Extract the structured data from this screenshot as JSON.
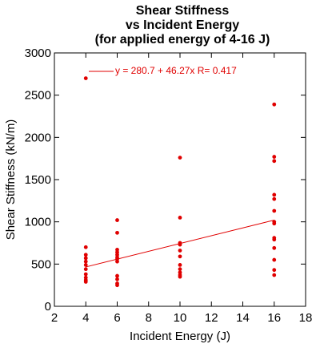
{
  "chart_data": {
    "type": "scatter",
    "title": [
      "Shear Stiffness",
      "vs Incident Energy",
      "(for applied energy of 4-16 J)"
    ],
    "xlabel": "Incident Energy (J)",
    "ylabel": "Shear Stiffness (kN/m)",
    "xlim": [
      2,
      18
    ],
    "ylim": [
      0,
      3000
    ],
    "xticks": [
      2,
      4,
      6,
      8,
      10,
      12,
      14,
      16,
      18
    ],
    "yticks": [
      0,
      500,
      1000,
      1500,
      2000,
      2500,
      3000
    ],
    "grid": false,
    "color": "#e00000",
    "points": [
      {
        "x": 4,
        "y": 2700
      },
      {
        "x": 4,
        "y": 700
      },
      {
        "x": 4,
        "y": 610
      },
      {
        "x": 4,
        "y": 570
      },
      {
        "x": 4,
        "y": 530
      },
      {
        "x": 4,
        "y": 490
      },
      {
        "x": 4,
        "y": 440
      },
      {
        "x": 4,
        "y": 380
      },
      {
        "x": 4,
        "y": 340
      },
      {
        "x": 4,
        "y": 310
      },
      {
        "x": 4,
        "y": 290
      },
      {
        "x": 6,
        "y": 1020
      },
      {
        "x": 6,
        "y": 870
      },
      {
        "x": 6,
        "y": 670
      },
      {
        "x": 6,
        "y": 640
      },
      {
        "x": 6,
        "y": 610
      },
      {
        "x": 6,
        "y": 580
      },
      {
        "x": 6,
        "y": 560
      },
      {
        "x": 6,
        "y": 530
      },
      {
        "x": 6,
        "y": 360
      },
      {
        "x": 6,
        "y": 320
      },
      {
        "x": 6,
        "y": 270
      },
      {
        "x": 6,
        "y": 250
      },
      {
        "x": 10,
        "y": 1760
      },
      {
        "x": 10,
        "y": 1050
      },
      {
        "x": 10,
        "y": 750
      },
      {
        "x": 10,
        "y": 730
      },
      {
        "x": 10,
        "y": 660
      },
      {
        "x": 10,
        "y": 590
      },
      {
        "x": 10,
        "y": 490
      },
      {
        "x": 10,
        "y": 440
      },
      {
        "x": 10,
        "y": 400
      },
      {
        "x": 10,
        "y": 370
      },
      {
        "x": 10,
        "y": 350
      },
      {
        "x": 16,
        "y": 2390
      },
      {
        "x": 16,
        "y": 1770
      },
      {
        "x": 16,
        "y": 1720
      },
      {
        "x": 16,
        "y": 1320
      },
      {
        "x": 16,
        "y": 1270
      },
      {
        "x": 16,
        "y": 1130
      },
      {
        "x": 16,
        "y": 1000
      },
      {
        "x": 16,
        "y": 980
      },
      {
        "x": 16,
        "y": 810
      },
      {
        "x": 16,
        "y": 790
      },
      {
        "x": 16,
        "y": 690
      },
      {
        "x": 16,
        "y": 550
      },
      {
        "x": 16,
        "y": 430
      },
      {
        "x": 16,
        "y": 370
      }
    ],
    "fit": {
      "intercept": 280.7,
      "slope": 46.27,
      "x_range": [
        4,
        16
      ],
      "label": "y = 280.7 + 46.27x   R= 0.417"
    }
  }
}
